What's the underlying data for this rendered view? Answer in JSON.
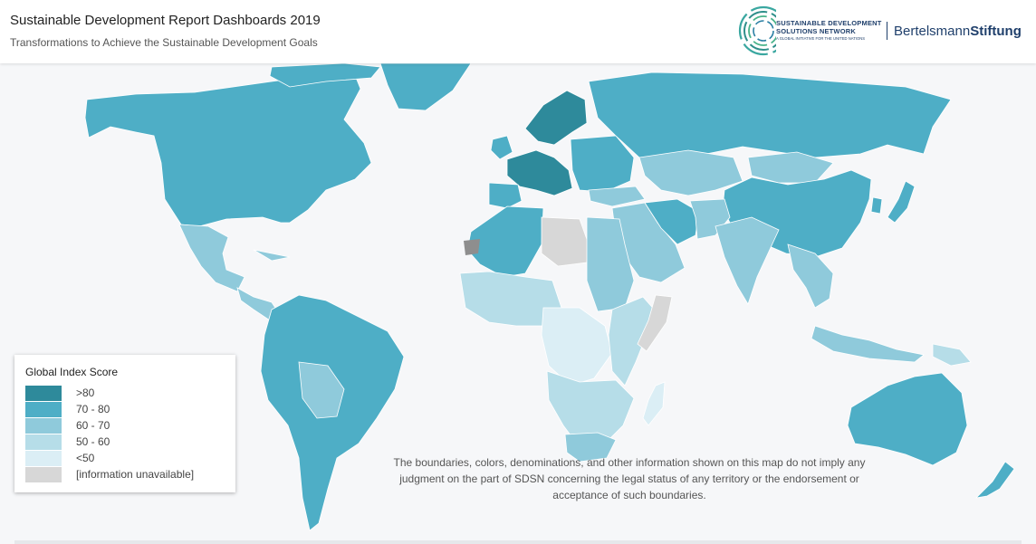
{
  "header": {
    "title": "Sustainable Development Report Dashboards 2019",
    "subtitle": "Transformations to Achieve the Sustainable Development Goals"
  },
  "logos": {
    "sdsn_line1": "SUSTAINABLE DEVELOPMENT",
    "sdsn_line2": "SOLUTIONS NETWORK",
    "sdsn_line3": "A GLOBAL INITIATIVE FOR THE UNITED NATIONS",
    "partner_regular": "Bertelsmann",
    "partner_bold": "Stiftung"
  },
  "legend": {
    "title": "Global Index Score",
    "items": [
      {
        "label": ">80",
        "color": "#2e8a9b"
      },
      {
        "label": "70 - 80",
        "color": "#4eaec6"
      },
      {
        "label": "60 - 70",
        "color": "#8fcadb"
      },
      {
        "label": "50 - 60",
        "color": "#b6dde8"
      },
      {
        "label": "<50",
        "color": "#dbeef5"
      },
      {
        "label": "[information unavailable]",
        "color": "#d7d7d7"
      }
    ]
  },
  "disclaimer": "The boundaries, colors, denominations, and other information shown on this map do not imply any judgment on the part of SDSN concerning the legal status of any territory or the endorsement or acceptance of such boundaries.",
  "map": {
    "regions": [
      {
        "name": "north-america",
        "band": "70 - 80"
      },
      {
        "name": "greenland",
        "band": "70 - 80"
      },
      {
        "name": "mexico",
        "band": "60 - 70"
      },
      {
        "name": "central-america",
        "band": "60 - 70"
      },
      {
        "name": "south-america",
        "band": "70 - 80"
      },
      {
        "name": "bolivia-region",
        "band": "60 - 70"
      },
      {
        "name": "western-europe",
        "band": ">80"
      },
      {
        "name": "scandinavia",
        "band": ">80"
      },
      {
        "name": "eastern-europe",
        "band": "70 - 80"
      },
      {
        "name": "russia",
        "band": "70 - 80"
      },
      {
        "name": "north-africa",
        "band": "70 - 80"
      },
      {
        "name": "libya",
        "band": "[information unavailable]"
      },
      {
        "name": "egypt-sudan",
        "band": "60 - 70"
      },
      {
        "name": "west-africa",
        "band": "50 - 60"
      },
      {
        "name": "central-africa",
        "band": "<50"
      },
      {
        "name": "east-africa",
        "band": "50 - 60"
      },
      {
        "name": "somalia",
        "band": "[information unavailable]"
      },
      {
        "name": "southern-africa",
        "band": "50 - 60"
      },
      {
        "name": "south-africa",
        "band": "60 - 70"
      },
      {
        "name": "madagascar",
        "band": "<50"
      },
      {
        "name": "middle-east",
        "band": "60 - 70"
      },
      {
        "name": "iran",
        "band": "70 - 80"
      },
      {
        "name": "central-asia",
        "band": "60 - 70"
      },
      {
        "name": "mongolia",
        "band": "60 - 70"
      },
      {
        "name": "china",
        "band": "70 - 80"
      },
      {
        "name": "india",
        "band": "60 - 70"
      },
      {
        "name": "southeast-asia",
        "band": "60 - 70"
      },
      {
        "name": "indonesia",
        "band": "60 - 70"
      },
      {
        "name": "japan",
        "band": "70 - 80"
      },
      {
        "name": "australia",
        "band": "70 - 80"
      },
      {
        "name": "new-zealand",
        "band": "70 - 80"
      },
      {
        "name": "papua",
        "band": "50 - 60"
      }
    ]
  }
}
